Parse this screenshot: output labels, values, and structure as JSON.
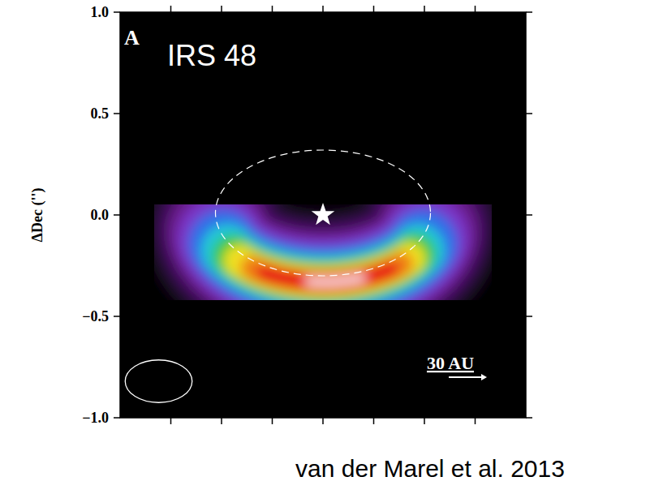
{
  "chart_data": {
    "type": "image",
    "title": "IRS 48",
    "panel": "A",
    "ylabel": "ΔDec ('')",
    "xlim": [
      -1,
      1
    ],
    "ylim": [
      -1,
      1
    ],
    "xticks": [
      -0.75,
      -0.5,
      -0.25,
      0,
      0.25,
      0.5,
      0.75
    ],
    "yticks": [
      {
        "value": 1,
        "label": "1.0"
      },
      {
        "value": 0.5,
        "label": "0.5"
      },
      {
        "value": 0,
        "label": "0.0"
      },
      {
        "value": -0.5,
        "label": "−0.5"
      },
      {
        "value": -1,
        "label": "−1.0"
      }
    ],
    "tick_labels": "y",
    "emission": {
      "ring_center": [
        0,
        -0.06
      ],
      "ring_radii": [
        0.52,
        0.27
      ],
      "levels": [
        {
          "color": "#1c0828",
          "width": 0.72,
          "angles": [
            175,
            365
          ]
        },
        {
          "color": "#3a0c55",
          "width": 0.6,
          "angles": [
            180,
            360
          ]
        },
        {
          "color": "#6a1a8c",
          "width": 0.5,
          "angles": [
            185,
            355
          ]
        },
        {
          "color": "#7a36c8",
          "width": 0.42,
          "angles": [
            192,
            348
          ]
        },
        {
          "color": "#2f6ee8",
          "width": 0.34,
          "angles": [
            198,
            342
          ]
        },
        {
          "color": "#22c8d8",
          "width": 0.26,
          "angles": [
            205,
            335
          ]
        },
        {
          "color": "#35c83a",
          "width": 0.21,
          "angles": [
            212,
            330
          ]
        },
        {
          "color": "#f0e020",
          "width": 0.16,
          "angles": [
            218,
            325
          ]
        },
        {
          "color": "#f08018",
          "width": 0.12,
          "angles": [
            228,
            318
          ]
        },
        {
          "color": "#e81818",
          "width": 0.08,
          "angles": [
            236,
            310
          ]
        },
        {
          "color": "#ffffff",
          "width": 0.03,
          "angles": [
            262,
            292
          ]
        }
      ]
    },
    "ellipse": {
      "center": [
        0,
        0.01
      ],
      "radii": [
        0.53,
        0.31
      ]
    },
    "star": [
      0,
      0
    ],
    "beam": {
      "center": [
        -0.81,
        -0.82
      ],
      "major": 0.33,
      "minor": 0.21
    },
    "scale_bar": {
      "label": "30 AU",
      "start": [
        0.62,
        -0.8
      ],
      "length": 0.16
    },
    "caption": "van der Marel et al. 2013"
  }
}
